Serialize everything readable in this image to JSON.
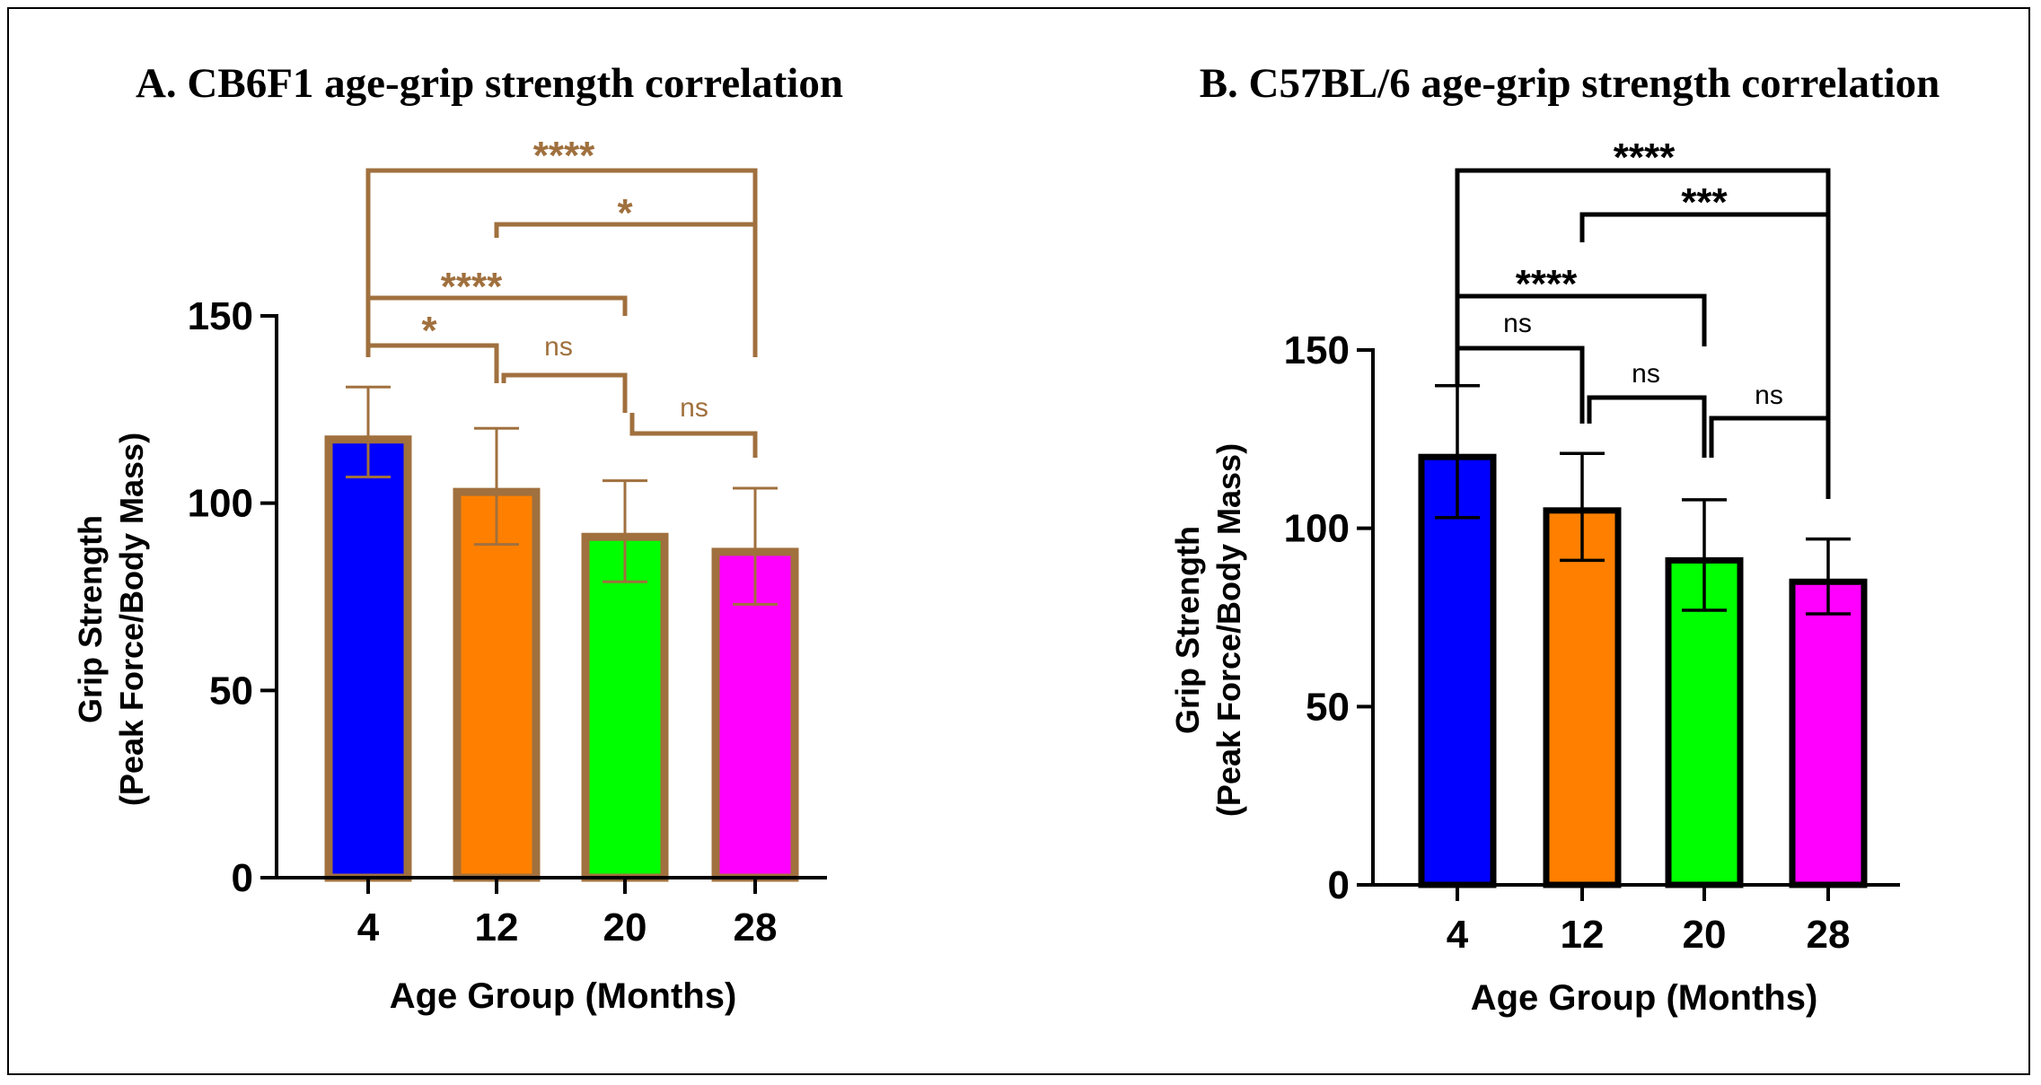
{
  "chart_data": [
    {
      "type": "bar",
      "title": "A. CB6F1 age-grip strength correlation",
      "xlabel": "Age Group (Months)",
      "ylabel_line1": "Grip Strength",
      "ylabel_line2": "(Peak Force/Body Mass)",
      "categories": [
        "4",
        "12",
        "20",
        "28"
      ],
      "values": [
        117,
        103,
        91,
        87
      ],
      "error": [
        [
          107,
          131
        ],
        [
          89,
          120
        ],
        [
          79,
          106
        ],
        [
          73,
          104
        ]
      ],
      "bar_colors": [
        "#0000ff",
        "#ff8000",
        "#00ff00",
        "#ff00ff"
      ],
      "outline_color": "#a0703e",
      "annotation_color": "#a0703e",
      "ylim": [
        0,
        150
      ],
      "yticks": [
        "0",
        "50",
        "100",
        "150"
      ],
      "comparisons": [
        {
          "from": "4",
          "to": "28",
          "label": "****"
        },
        {
          "from": "12",
          "to": "28",
          "label": "*"
        },
        {
          "from": "4",
          "to": "20",
          "label": "****"
        },
        {
          "from": "4",
          "to": "12",
          "label": "*"
        },
        {
          "from": "12",
          "to": "20",
          "label": "ns"
        },
        {
          "from": "20",
          "to": "28",
          "label": "ns"
        }
      ]
    },
    {
      "type": "bar",
      "title": "B. C57BL/6 age-grip strength correlation",
      "xlabel": "Age Group (Months)",
      "ylabel_line1": "Grip Strength",
      "ylabel_line2": "(Peak Force/Body Mass)",
      "categories": [
        "4",
        "12",
        "20",
        "28"
      ],
      "values": [
        120,
        105,
        91,
        85
      ],
      "error": [
        [
          103,
          140
        ],
        [
          91,
          121
        ],
        [
          77,
          108
        ],
        [
          76,
          97
        ]
      ],
      "bar_colors": [
        "#0000ff",
        "#ff8000",
        "#00ff00",
        "#ff00ff"
      ],
      "outline_color": "#000000",
      "annotation_color": "#000000",
      "ylim": [
        0,
        150
      ],
      "yticks": [
        "0",
        "50",
        "100",
        "150"
      ],
      "comparisons": [
        {
          "from": "4",
          "to": "28",
          "label": "****"
        },
        {
          "from": "12",
          "to": "28",
          "label": "***"
        },
        {
          "from": "4",
          "to": "20",
          "label": "****"
        },
        {
          "from": "4",
          "to": "12",
          "label": "ns"
        },
        {
          "from": "12",
          "to": "20",
          "label": "ns"
        },
        {
          "from": "20",
          "to": "28",
          "label": "ns"
        }
      ]
    }
  ]
}
